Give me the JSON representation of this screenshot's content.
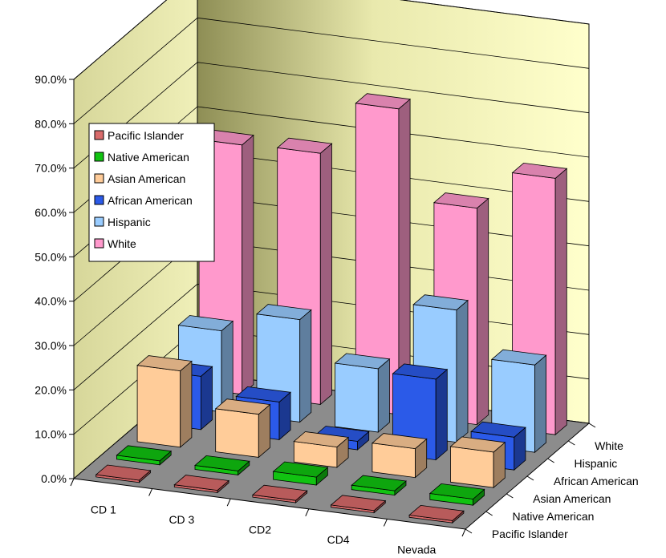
{
  "chart_data": {
    "type": "bar",
    "title": "",
    "xlabel": "",
    "ylabel": "",
    "ylim": [
      0,
      90
    ],
    "y_ticks": [
      "0.0%",
      "10.0%",
      "20.0%",
      "30.0%",
      "40.0%",
      "50.0%",
      "60.0%",
      "70.0%",
      "80.0%",
      "90.0%"
    ],
    "categories": [
      "CD 1",
      "CD 3",
      "CD2",
      "CD4",
      "Nevada"
    ],
    "series": [
      {
        "name": "Pacific Islander",
        "values": [
          0.5,
          0.5,
          0.5,
          0.5,
          0.5
        ],
        "color": "#d96b6b"
      },
      {
        "name": "Native American",
        "values": [
          0.9,
          0.9,
          1.8,
          1.0,
          1.4
        ],
        "color": "#11c311"
      },
      {
        "name": "Asian American",
        "values": [
          17.2,
          9.7,
          4.6,
          6.5,
          8.0
        ],
        "color": "#ffcc99"
      },
      {
        "name": "African American",
        "values": [
          12.0,
          8.5,
          1.9,
          18.2,
          7.4
        ],
        "color": "#2b5ae8"
      },
      {
        "name": "Hispanic",
        "values": [
          18.3,
          23.1,
          14.3,
          29.8,
          19.7
        ],
        "color": "#99ccff"
      },
      {
        "name": "White",
        "values": [
          56.2,
          56.6,
          68.9,
          48.8,
          57.8
        ],
        "color": "#ff99cc"
      }
    ],
    "legend_placement": "left",
    "grid": true
  }
}
